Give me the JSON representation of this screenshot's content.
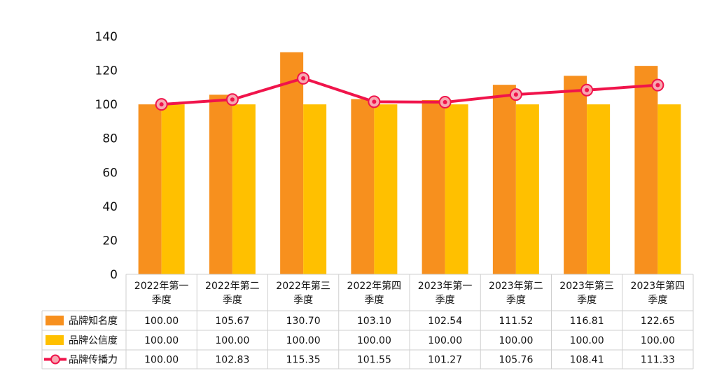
{
  "chart_data": {
    "type": "bar",
    "categories": [
      [
        "2022年第一",
        "季度"
      ],
      [
        "2022年第二",
        "季度"
      ],
      [
        "2022年第三",
        "季度"
      ],
      [
        "2022年第四",
        "季度"
      ],
      [
        "2023年第一",
        "季度"
      ],
      [
        "2023年第二",
        "季度"
      ],
      [
        "2023年第三",
        "季度"
      ],
      [
        "2023年第四",
        "季度"
      ]
    ],
    "ylim": [
      0,
      140
    ],
    "yticks": [
      0,
      20,
      40,
      60,
      80,
      100,
      120,
      140
    ],
    "grid": false,
    "series": [
      {
        "name": "品牌知名度",
        "type": "bar",
        "color": "#F7901E",
        "values": [
          100.0,
          105.67,
          130.7,
          103.1,
          102.54,
          111.52,
          116.81,
          122.65
        ],
        "labels": [
          "100.00",
          "105.67",
          "130.70",
          "103.10",
          "102.54",
          "111.52",
          "116.81",
          "122.65"
        ]
      },
      {
        "name": "品牌公信度",
        "type": "bar",
        "color": "#FFC000",
        "values": [
          100.0,
          100.0,
          100.0,
          100.0,
          100.0,
          100.0,
          100.0,
          100.0
        ],
        "labels": [
          "100.00",
          "100.00",
          "100.00",
          "100.00",
          "100.00",
          "100.00",
          "100.00",
          "100.00"
        ]
      },
      {
        "name": "品牌传播力",
        "type": "line",
        "color": "#F0144B",
        "values": [
          100.0,
          102.83,
          115.35,
          101.55,
          101.27,
          105.76,
          108.41,
          111.33
        ],
        "labels": [
          "100.00",
          "102.83",
          "115.35",
          "101.55",
          "101.27",
          "105.76",
          "108.41",
          "111.33"
        ]
      }
    ]
  }
}
